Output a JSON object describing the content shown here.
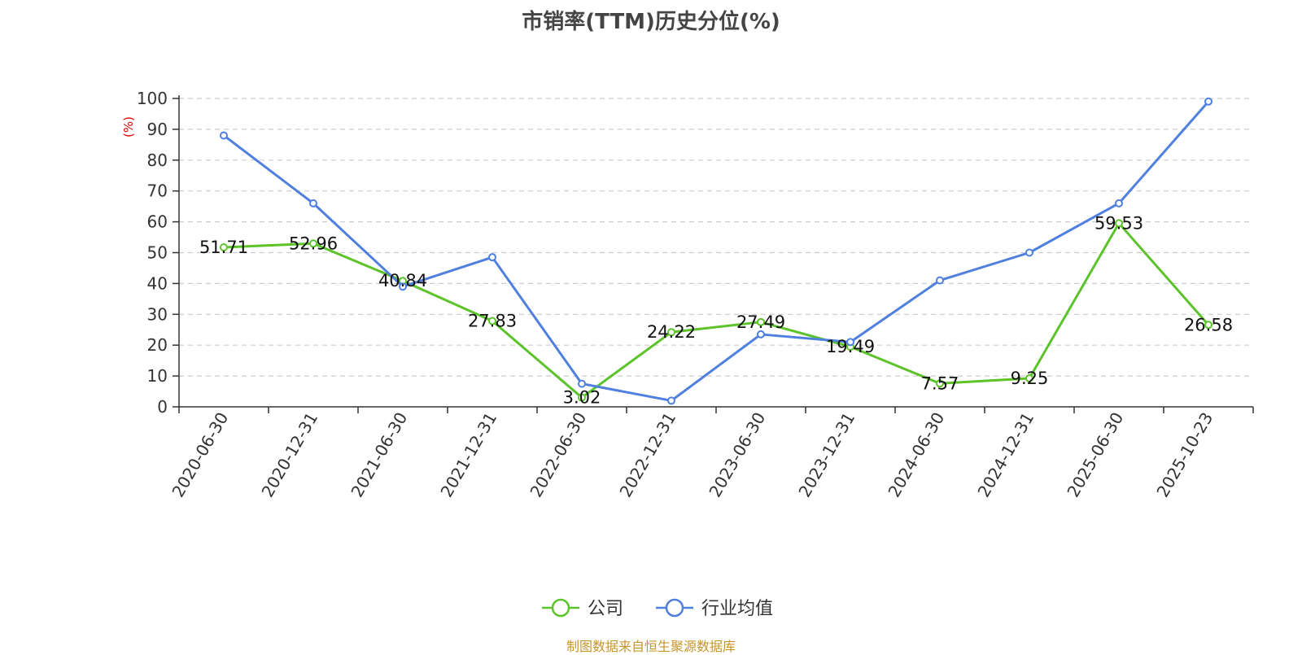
{
  "chart_data": {
    "type": "line",
    "title": "市销率(TTM)历史分位(%)",
    "ylabel": "(%)",
    "xlabel": "",
    "categories": [
      "2020-06-30",
      "2020-12-31",
      "2021-06-30",
      "2021-12-31",
      "2022-06-30",
      "2022-12-31",
      "2023-06-30",
      "2023-12-31",
      "2024-06-30",
      "2024-12-31",
      "2025-06-30",
      "2025-10-23"
    ],
    "ylim": [
      0,
      100
    ],
    "yticks": [
      0,
      10,
      20,
      30,
      40,
      50,
      60,
      70,
      80,
      90,
      100
    ],
    "grid": true,
    "legend_position": "bottom",
    "series": [
      {
        "name": "公司",
        "color": "#5cc32a",
        "values": [
          51.71,
          52.96,
          40.84,
          27.83,
          3.02,
          24.22,
          27.49,
          19.49,
          7.57,
          9.25,
          59.53,
          26.58
        ],
        "labels": [
          "51.71",
          "52.96",
          "40.84",
          "27.83",
          "3.02",
          "24.22",
          "27.49",
          "19.49",
          "7.57",
          "9.25",
          "59.53",
          "26.58"
        ]
      },
      {
        "name": "行业均值",
        "color": "#4f7fdf",
        "values": [
          88,
          66,
          39,
          48.5,
          7.5,
          2,
          23.5,
          21,
          41,
          50,
          66,
          99
        ]
      }
    ]
  },
  "source_note": "制图数据来自恒生聚源数据库"
}
